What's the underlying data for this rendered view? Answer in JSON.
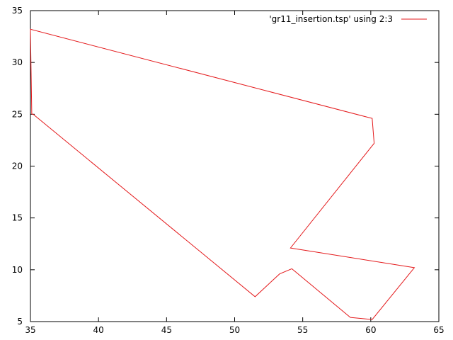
{
  "chart_data": {
    "type": "line",
    "title": "",
    "xlabel": "",
    "ylabel": "",
    "xlim": [
      35,
      65
    ],
    "ylim": [
      5,
      35
    ],
    "xticks": [
      35,
      40,
      45,
      50,
      55,
      60,
      65
    ],
    "yticks": [
      5,
      10,
      15,
      20,
      25,
      30,
      35
    ],
    "grid": false,
    "legend_position": "top-right",
    "series": [
      {
        "name": "'gr11_insertion.tsp' using 2:3",
        "color": "#e41a1c",
        "x": [
          35.1,
          35.0,
          60.1,
          60.25,
          54.1,
          63.2,
          60.1,
          58.5,
          54.2,
          53.3,
          51.5,
          35.2,
          35.1
        ],
        "y": [
          25.0,
          33.2,
          24.6,
          22.2,
          12.1,
          10.2,
          5.2,
          5.4,
          10.1,
          9.6,
          7.4,
          25.0,
          25.0
        ]
      }
    ]
  }
}
